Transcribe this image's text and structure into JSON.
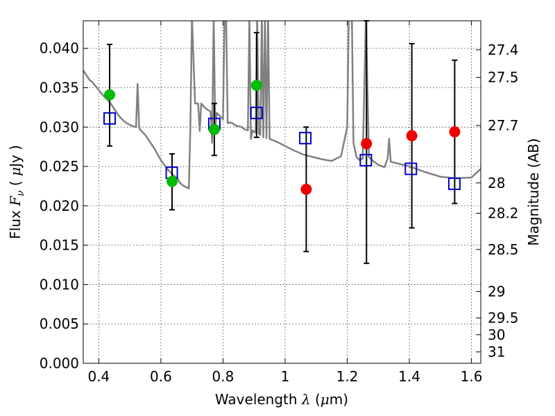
{
  "chart_data": {
    "type": "scatter",
    "title": "",
    "xlabel": "Wavelength  λ (μm)",
    "ylabel": "Flux  F_ν  ( μJy )",
    "y2label": "Magnitude (AB)",
    "xlim": [
      0.35,
      1.63
    ],
    "ylim": [
      0.0,
      0.0435
    ],
    "grid": true,
    "colors": {
      "model": "#808080",
      "model_photometry": "#0000cc",
      "optical_detections": "#00bb00",
      "nir_detections": "#ee0000",
      "error_bars": "#000000"
    },
    "x_ticks": [
      {
        "value": 0.4,
        "label": "0.4"
      },
      {
        "value": 0.6,
        "label": "0.6"
      },
      {
        "value": 0.8,
        "label": "0.8"
      },
      {
        "value": 1.0,
        "label": "1"
      },
      {
        "value": 1.2,
        "label": "1.2"
      },
      {
        "value": 1.4,
        "label": "1.4"
      },
      {
        "value": 1.6,
        "label": "1.6"
      }
    ],
    "y_ticks": [
      {
        "value": 0.0,
        "label": "0.000"
      },
      {
        "value": 0.005,
        "label": "0.005"
      },
      {
        "value": 0.01,
        "label": "0.010"
      },
      {
        "value": 0.015,
        "label": "0.015"
      },
      {
        "value": 0.02,
        "label": "0.020"
      },
      {
        "value": 0.025,
        "label": "0.025"
      },
      {
        "value": 0.03,
        "label": "0.030"
      },
      {
        "value": 0.035,
        "label": "0.035"
      },
      {
        "value": 0.04,
        "label": "0.040"
      }
    ],
    "mag_ticks": [
      {
        "value": 27.4,
        "label": "27.4"
      },
      {
        "value": 27.5,
        "label": "27.5"
      },
      {
        "value": 27.7,
        "label": "27.7"
      },
      {
        "value": 28.0,
        "label": "28"
      },
      {
        "value": 28.2,
        "label": "28.2"
      },
      {
        "value": 28.5,
        "label": "28.5"
      },
      {
        "value": 29.0,
        "label": "29"
      },
      {
        "value": 29.5,
        "label": "29.5"
      },
      {
        "value": 30.0,
        "label": "30"
      },
      {
        "value": 31.0,
        "label": "31"
      }
    ],
    "series": [
      {
        "kind": "line",
        "x": [
          0.35,
          0.36,
          0.37,
          0.38,
          0.39,
          0.4,
          0.41,
          0.42,
          0.43,
          0.44,
          0.45,
          0.46,
          0.47,
          0.48,
          0.49,
          0.5,
          0.51,
          0.52,
          0.525,
          0.53,
          0.535,
          0.55,
          0.58,
          0.6,
          0.62,
          0.64,
          0.655,
          0.66,
          0.665,
          0.67,
          0.68,
          0.69,
          0.695,
          0.7,
          0.71,
          0.72,
          0.725,
          0.73,
          0.74,
          0.75,
          0.76,
          0.765,
          0.77,
          0.775,
          0.78,
          0.79,
          0.8,
          0.805,
          0.81,
          0.815,
          0.82,
          0.83,
          0.84,
          0.85,
          0.86,
          0.87,
          0.88,
          0.885,
          0.89,
          0.895,
          0.9,
          0.905,
          0.91,
          0.915,
          0.92,
          0.925,
          0.93,
          0.935,
          0.94,
          0.945,
          0.95,
          0.97,
          1.0,
          1.03,
          1.06,
          1.09,
          1.12,
          1.15,
          1.18,
          1.2,
          1.205,
          1.21,
          1.215,
          1.22,
          1.23,
          1.24,
          1.25,
          1.26,
          1.27,
          1.28,
          1.3,
          1.32,
          1.33,
          1.335,
          1.34,
          1.36,
          1.4,
          1.45,
          1.5,
          1.55,
          1.6,
          1.63
        ],
        "y": [
          0.0372,
          0.0366,
          0.036,
          0.0357,
          0.0352,
          0.0347,
          0.0342,
          0.0338,
          0.0334,
          0.0329,
          0.0323,
          0.0317,
          0.0312,
          0.0308,
          0.0305,
          0.0303,
          0.0301,
          0.03,
          0.0355,
          0.0299,
          0.0296,
          0.029,
          0.0272,
          0.0258,
          0.0247,
          0.0239,
          0.0234,
          0.023,
          0.0228,
          0.0226,
          0.0224,
          0.0222,
          0.03,
          0.044,
          0.033,
          0.033,
          0.0295,
          0.033,
          0.0325,
          0.0322,
          0.032,
          0.028,
          0.044,
          0.03,
          0.0318,
          0.0314,
          0.031,
          0.044,
          0.044,
          0.0305,
          0.0306,
          0.0305,
          0.0302,
          0.0301,
          0.03,
          0.0297,
          0.0296,
          0.044,
          0.0285,
          0.0296,
          0.0294,
          0.0293,
          0.044,
          0.0292,
          0.029,
          0.044,
          0.0287,
          0.044,
          0.0286,
          0.044,
          0.0285,
          0.0282,
          0.0276,
          0.027,
          0.0265,
          0.0262,
          0.0259,
          0.0257,
          0.0263,
          0.03,
          0.044,
          0.044,
          0.044,
          0.028,
          0.0262,
          0.0258,
          0.026,
          0.044,
          0.0262,
          0.0258,
          0.0252,
          0.0249,
          0.026,
          0.0285,
          0.0256,
          0.0254,
          0.025,
          0.0243,
          0.0237,
          0.0235,
          0.0236,
          0.0247
        ]
      },
      {
        "kind": "model_photometry",
        "marker": "open-square",
        "x": [
          0.435,
          0.635,
          0.772,
          0.908,
          1.065,
          1.26,
          1.405,
          1.545
        ],
        "y": [
          0.0311,
          0.0242,
          0.0304,
          0.0318,
          0.0286,
          0.0258,
          0.0247,
          0.0228
        ]
      },
      {
        "kind": "optical_detections",
        "marker": "filled-circle",
        "x": [
          0.435,
          0.636,
          0.772,
          0.908
        ],
        "y": [
          0.0341,
          0.0231,
          0.0297,
          0.0353
        ],
        "err": [
          [
            0.0276,
            0.0405
          ],
          [
            0.0195,
            0.0266
          ],
          [
            0.0264,
            0.033
          ],
          [
            0.0287,
            0.042
          ]
        ]
      },
      {
        "kind": "nir_detections",
        "marker": "filled-circle",
        "x": [
          1.068,
          1.262,
          1.408,
          1.546
        ],
        "y": [
          0.0221,
          0.0279,
          0.0289,
          0.0294
        ],
        "err": [
          [
            0.0142,
            0.03
          ],
          [
            0.0127,
            0.0435
          ],
          [
            0.0172,
            0.0406
          ],
          [
            0.0203,
            0.0385
          ]
        ]
      }
    ]
  }
}
